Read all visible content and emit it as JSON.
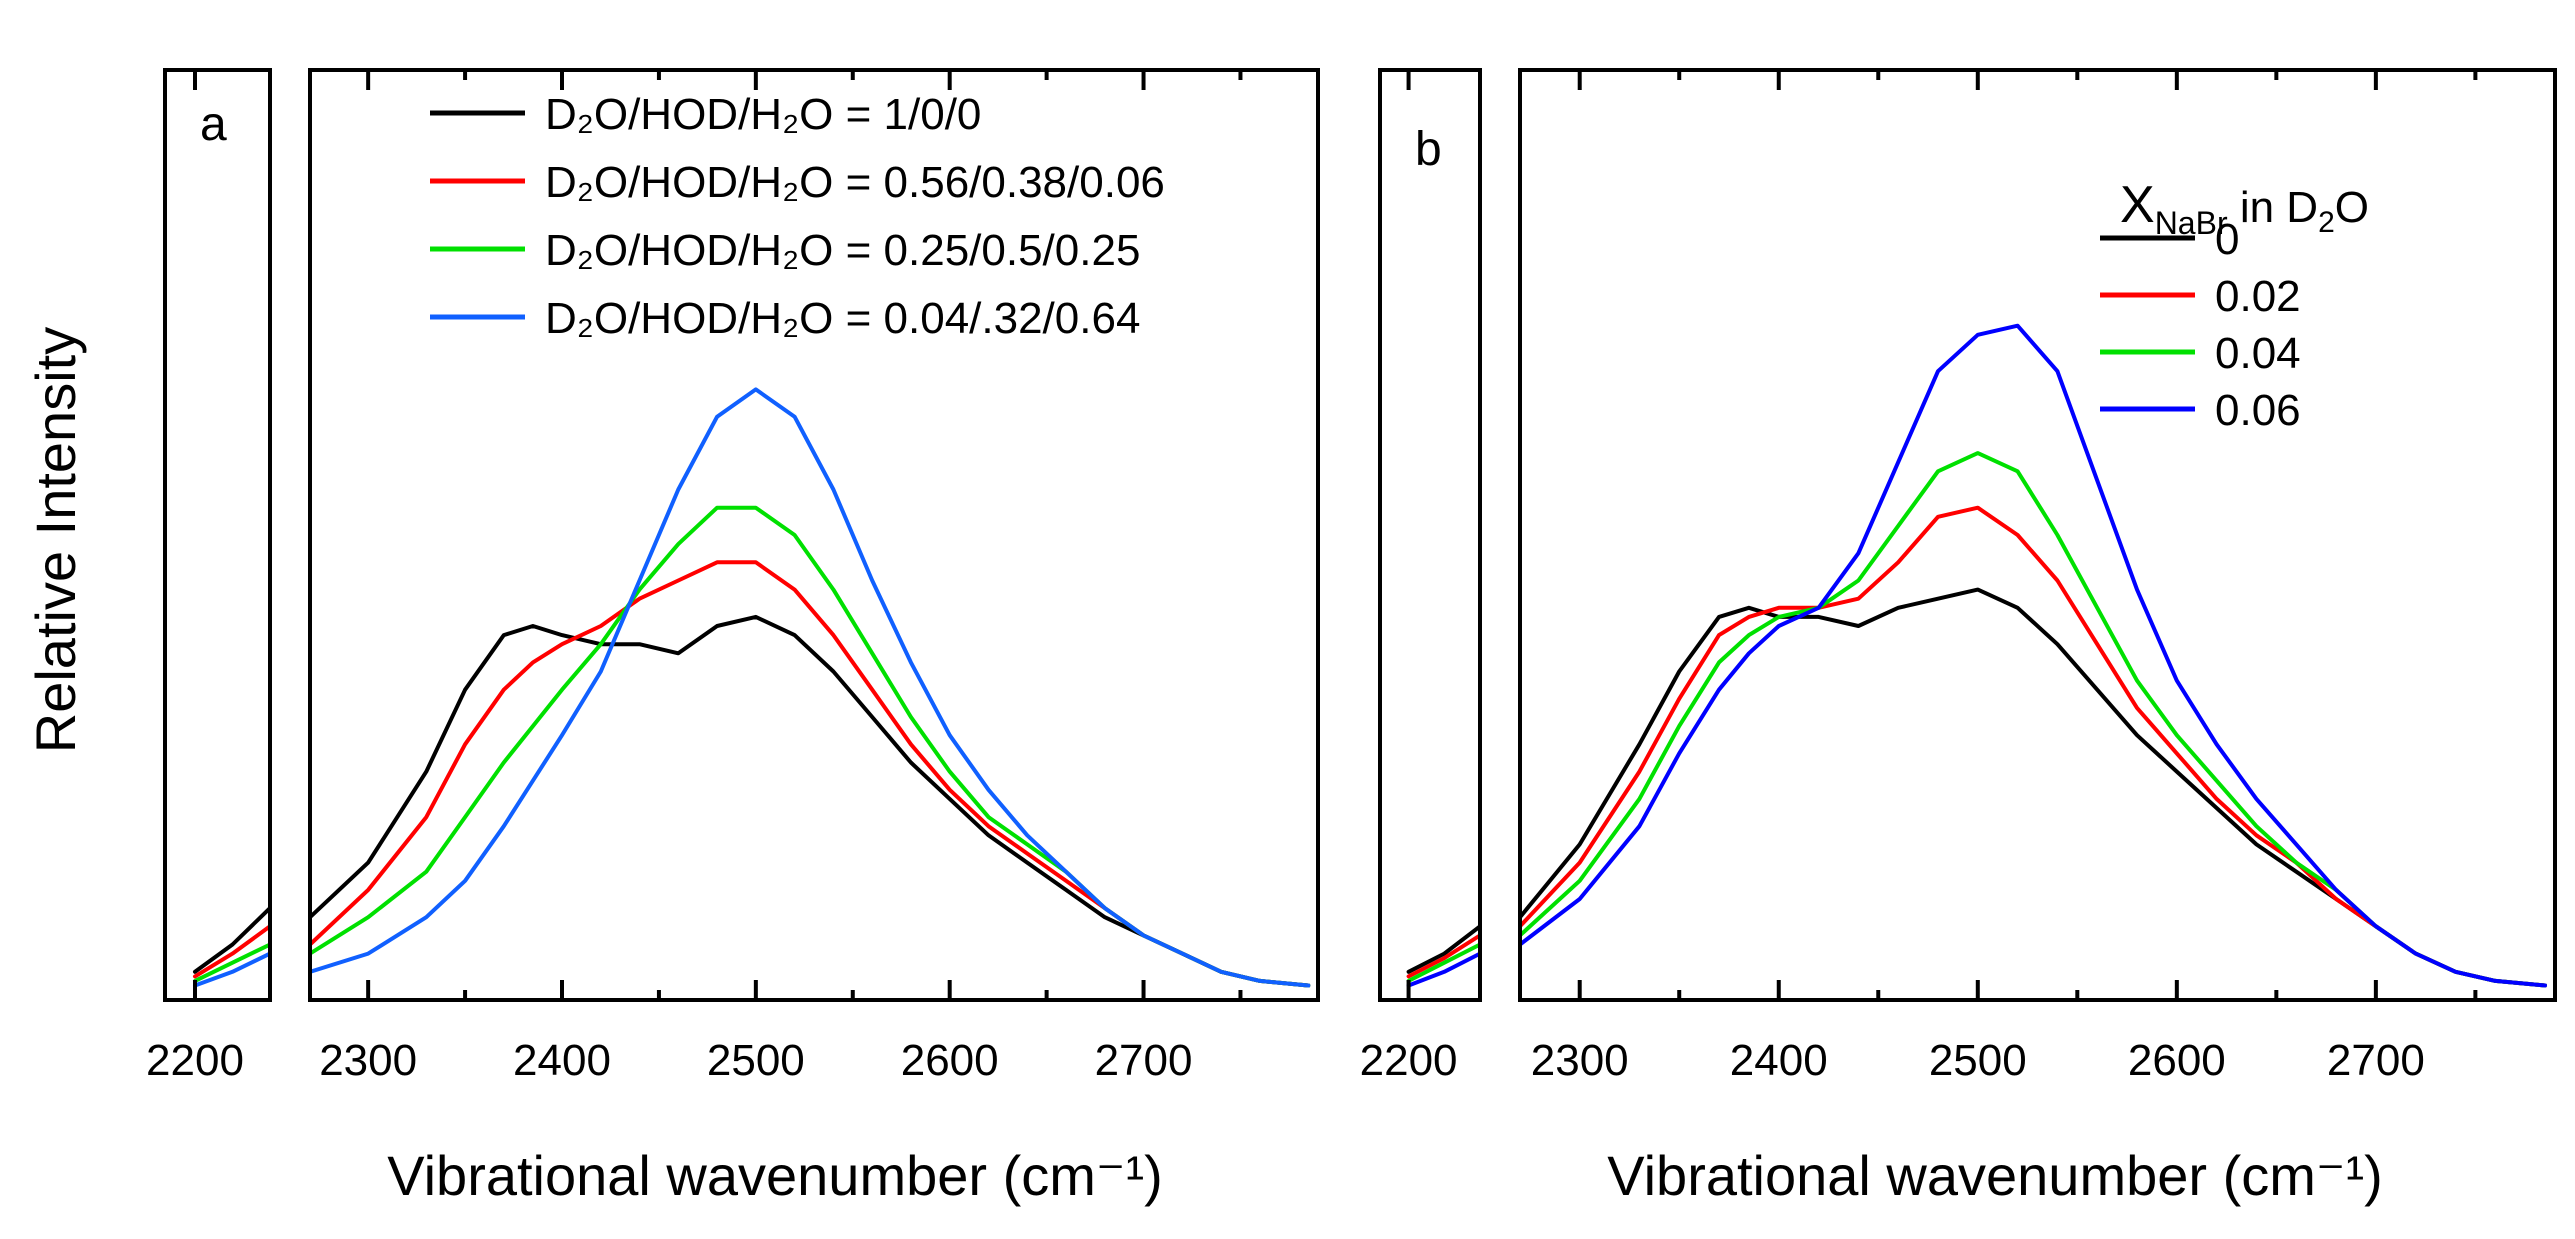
{
  "y_axis_title": "Relative Intensity",
  "chart_data": [
    {
      "type": "line",
      "panel_label": "a",
      "xlabel": "Vibrational wavenumber (cm⁻¹)",
      "ylabel": "Relative Intensity",
      "xlim": [
        2180,
        2790
      ],
      "ylim": [
        0,
        1.0
      ],
      "axis_break": [
        2250,
        2270
      ],
      "x_ticks_left": [
        2200
      ],
      "x_ticks_right": [
        2300,
        2400,
        2500,
        2600,
        2700
      ],
      "legend_title": "",
      "series": [
        {
          "name": "D₂O/HOD/H₂O = 1/0/0",
          "color": "#000000",
          "x": [
            2200,
            2225,
            2250,
            2270,
            2300,
            2330,
            2350,
            2370,
            2385,
            2400,
            2420,
            2440,
            2460,
            2480,
            2500,
            2520,
            2540,
            2560,
            2580,
            2600,
            2620,
            2640,
            2660,
            2680,
            2700,
            2720,
            2740,
            2760,
            2785
          ],
          "y": [
            0.02,
            0.05,
            0.09,
            0.08,
            0.14,
            0.24,
            0.33,
            0.39,
            0.4,
            0.39,
            0.38,
            0.38,
            0.37,
            0.4,
            0.41,
            0.39,
            0.35,
            0.3,
            0.25,
            0.21,
            0.17,
            0.14,
            0.11,
            0.08,
            0.06,
            0.04,
            0.02,
            0.01,
            0.005
          ]
        },
        {
          "name": "D₂O/HOD/H₂O = 0.56/0.38/0.06",
          "color": "#ff0000",
          "x": [
            2200,
            2225,
            2250,
            2270,
            2300,
            2330,
            2350,
            2370,
            2385,
            2400,
            2420,
            2440,
            2460,
            2480,
            2500,
            2520,
            2540,
            2560,
            2580,
            2600,
            2620,
            2640,
            2660,
            2680,
            2700,
            2720,
            2740,
            2760,
            2785
          ],
          "y": [
            0.015,
            0.04,
            0.07,
            0.05,
            0.11,
            0.19,
            0.27,
            0.33,
            0.36,
            0.38,
            0.4,
            0.43,
            0.45,
            0.47,
            0.47,
            0.44,
            0.39,
            0.33,
            0.27,
            0.22,
            0.18,
            0.15,
            0.12,
            0.09,
            0.06,
            0.04,
            0.02,
            0.01,
            0.005
          ]
        },
        {
          "name": "D₂O/HOD/H₂O = 0.25/0.5/0.25",
          "color": "#00e000",
          "x": [
            2200,
            2225,
            2250,
            2270,
            2300,
            2330,
            2350,
            2370,
            2385,
            2400,
            2420,
            2440,
            2460,
            2480,
            2500,
            2520,
            2540,
            2560,
            2580,
            2600,
            2620,
            2640,
            2660,
            2680,
            2700,
            2720,
            2740,
            2760,
            2785
          ],
          "y": [
            0.01,
            0.03,
            0.05,
            0.04,
            0.08,
            0.13,
            0.19,
            0.25,
            0.29,
            0.33,
            0.38,
            0.44,
            0.49,
            0.53,
            0.53,
            0.5,
            0.44,
            0.37,
            0.3,
            0.24,
            0.19,
            0.16,
            0.13,
            0.09,
            0.06,
            0.04,
            0.02,
            0.01,
            0.005
          ]
        },
        {
          "name": "D₂O/HOD/H₂O = 0.04/.32/0.64",
          "color": "#1060ff",
          "x": [
            2200,
            2225,
            2250,
            2270,
            2300,
            2330,
            2350,
            2370,
            2385,
            2400,
            2420,
            2440,
            2460,
            2480,
            2500,
            2520,
            2540,
            2560,
            2580,
            2600,
            2620,
            2640,
            2660,
            2680,
            2700,
            2720,
            2740,
            2760,
            2785
          ],
          "y": [
            0.005,
            0.02,
            0.04,
            0.02,
            0.04,
            0.08,
            0.12,
            0.18,
            0.23,
            0.28,
            0.35,
            0.45,
            0.55,
            0.63,
            0.66,
            0.63,
            0.55,
            0.45,
            0.36,
            0.28,
            0.22,
            0.17,
            0.13,
            0.09,
            0.06,
            0.04,
            0.02,
            0.01,
            0.005
          ]
        }
      ]
    },
    {
      "type": "line",
      "panel_label": "b",
      "xlabel": "Vibrational wavenumber (cm⁻¹)",
      "ylabel": "",
      "xlim": [
        2180,
        2790
      ],
      "ylim": [
        0,
        1.0
      ],
      "axis_break": [
        2250,
        2270
      ],
      "x_ticks_left": [
        2200
      ],
      "x_ticks_right": [
        2300,
        2400,
        2500,
        2600,
        2700
      ],
      "legend_title": "X_NaBr in D₂O",
      "legend_title_parts": {
        "main": "X",
        "sub": "NaBr",
        "mid": " in D",
        "sub2": "2",
        "end": "O"
      },
      "series": [
        {
          "name": "0",
          "color": "#000000",
          "x": [
            2200,
            2225,
            2250,
            2270,
            2300,
            2330,
            2350,
            2370,
            2385,
            2400,
            2420,
            2440,
            2460,
            2480,
            2500,
            2520,
            2540,
            2560,
            2580,
            2600,
            2620,
            2640,
            2660,
            2680,
            2700,
            2720,
            2740,
            2760,
            2785
          ],
          "y": [
            0.02,
            0.04,
            0.07,
            0.08,
            0.16,
            0.27,
            0.35,
            0.41,
            0.42,
            0.41,
            0.41,
            0.4,
            0.42,
            0.43,
            0.44,
            0.42,
            0.38,
            0.33,
            0.28,
            0.24,
            0.2,
            0.16,
            0.13,
            0.1,
            0.07,
            0.04,
            0.02,
            0.01,
            0.005
          ]
        },
        {
          "name": "0.02",
          "color": "#ff0000",
          "x": [
            2200,
            2225,
            2250,
            2270,
            2300,
            2330,
            2350,
            2370,
            2385,
            2400,
            2420,
            2440,
            2460,
            2480,
            2500,
            2520,
            2540,
            2560,
            2580,
            2600,
            2620,
            2640,
            2660,
            2680,
            2700,
            2720,
            2740,
            2760,
            2785
          ],
          "y": [
            0.015,
            0.035,
            0.06,
            0.07,
            0.14,
            0.24,
            0.32,
            0.39,
            0.41,
            0.42,
            0.42,
            0.43,
            0.47,
            0.52,
            0.53,
            0.5,
            0.45,
            0.38,
            0.31,
            0.26,
            0.21,
            0.17,
            0.14,
            0.1,
            0.07,
            0.04,
            0.02,
            0.01,
            0.005
          ]
        },
        {
          "name": "0.04",
          "color": "#00e000",
          "x": [
            2200,
            2225,
            2250,
            2270,
            2300,
            2330,
            2350,
            2370,
            2385,
            2400,
            2420,
            2440,
            2460,
            2480,
            2500,
            2520,
            2540,
            2560,
            2580,
            2600,
            2620,
            2640,
            2660,
            2680,
            2700,
            2720,
            2740,
            2760,
            2785
          ],
          "y": [
            0.01,
            0.03,
            0.05,
            0.06,
            0.12,
            0.21,
            0.29,
            0.36,
            0.39,
            0.41,
            0.42,
            0.45,
            0.51,
            0.57,
            0.59,
            0.57,
            0.5,
            0.42,
            0.34,
            0.28,
            0.23,
            0.18,
            0.14,
            0.11,
            0.07,
            0.04,
            0.02,
            0.01,
            0.005
          ]
        },
        {
          "name": "0.06",
          "color": "#0000ff",
          "x": [
            2200,
            2225,
            2250,
            2270,
            2300,
            2330,
            2350,
            2370,
            2385,
            2400,
            2420,
            2440,
            2460,
            2480,
            2500,
            2520,
            2540,
            2560,
            2580,
            2600,
            2620,
            2640,
            2660,
            2680,
            2700,
            2720,
            2740,
            2760,
            2785
          ],
          "y": [
            0.005,
            0.02,
            0.04,
            0.05,
            0.1,
            0.18,
            0.26,
            0.33,
            0.37,
            0.4,
            0.42,
            0.48,
            0.58,
            0.68,
            0.72,
            0.73,
            0.68,
            0.56,
            0.44,
            0.34,
            0.27,
            0.21,
            0.16,
            0.11,
            0.07,
            0.04,
            0.02,
            0.01,
            0.005
          ]
        }
      ]
    }
  ]
}
